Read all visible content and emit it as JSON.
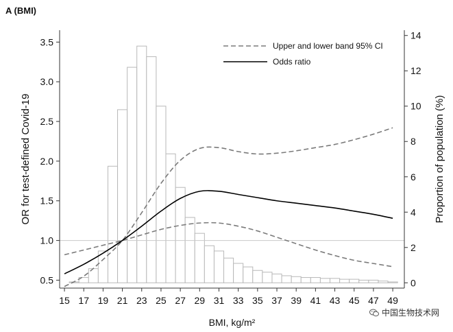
{
  "chart_data": {
    "type": "bar+line",
    "panel_label": "A (BMI)",
    "xlabel": "BMI, kg/m²",
    "ylabel_left": "OR for test-defined Covid-19",
    "ylabel_right": "Proportion of population (%)",
    "xlim": [
      14.5,
      50.2
    ],
    "ylim_left": [
      0.4,
      3.65
    ],
    "ylim_right": [
      -0.3,
      14.3
    ],
    "x_ticks": [
      15,
      17,
      19,
      21,
      23,
      25,
      27,
      29,
      31,
      33,
      35,
      37,
      39,
      41,
      43,
      45,
      47,
      49
    ],
    "y_left_ticks": [
      0.5,
      1.0,
      1.5,
      2.0,
      2.5,
      3.0,
      3.5
    ],
    "y_right_ticks": [
      0,
      2,
      4,
      6,
      8,
      10,
      12,
      14
    ],
    "reference_line_or": 1.0,
    "histogram": {
      "name": "Proportion of population (%)",
      "bin_centers": [
        16,
        17,
        18,
        19,
        20,
        21,
        22,
        23,
        24,
        25,
        26,
        27,
        28,
        29,
        30,
        31,
        32,
        33,
        34,
        35,
        36,
        37,
        38,
        39,
        40,
        41,
        42,
        43,
        44,
        45,
        46,
        47,
        48,
        49
      ],
      "values": [
        0.05,
        0.3,
        0.8,
        1.8,
        6.6,
        9.8,
        12.2,
        13.4,
        12.8,
        10.0,
        7.3,
        5.4,
        3.7,
        2.8,
        2.1,
        1.8,
        1.4,
        1.1,
        0.9,
        0.7,
        0.6,
        0.5,
        0.4,
        0.35,
        0.3,
        0.3,
        0.25,
        0.25,
        0.2,
        0.2,
        0.15,
        0.15,
        0.1,
        0.05
      ]
    },
    "series": [
      {
        "name": "Upper and lower band 95% CI",
        "role": "upper",
        "style": "dashed",
        "x": [
          15,
          17,
          19,
          21,
          23,
          25,
          27,
          29,
          31,
          33,
          35,
          37,
          39,
          41,
          43,
          45,
          47,
          49
        ],
        "values": [
          0.42,
          0.55,
          0.76,
          1.0,
          1.35,
          1.72,
          2.01,
          2.16,
          2.17,
          2.12,
          2.09,
          2.1,
          2.13,
          2.17,
          2.21,
          2.27,
          2.34,
          2.42
        ]
      },
      {
        "name": "Upper and lower band 95% CI",
        "role": "lower",
        "style": "dashed",
        "x": [
          15,
          17,
          19,
          21,
          23,
          25,
          27,
          29,
          31,
          33,
          35,
          37,
          39,
          41,
          43,
          45,
          47,
          49
        ],
        "values": [
          0.82,
          0.88,
          0.94,
          1.0,
          1.07,
          1.14,
          1.19,
          1.22,
          1.22,
          1.18,
          1.12,
          1.04,
          0.96,
          0.88,
          0.81,
          0.75,
          0.71,
          0.67
        ]
      },
      {
        "name": "Odds ratio",
        "role": "estimate",
        "style": "solid",
        "x": [
          15,
          17,
          19,
          21,
          23,
          25,
          27,
          29,
          31,
          33,
          35,
          37,
          39,
          41,
          43,
          45,
          47,
          49
        ],
        "values": [
          0.58,
          0.7,
          0.84,
          1.0,
          1.18,
          1.37,
          1.53,
          1.62,
          1.62,
          1.58,
          1.54,
          1.5,
          1.47,
          1.44,
          1.41,
          1.37,
          1.33,
          1.28
        ]
      }
    ],
    "legend": {
      "placement": "top-right",
      "items": [
        {
          "label": "Upper and lower band 95% CI",
          "style": "dashed"
        },
        {
          "label": "Odds ratio",
          "style": "solid"
        }
      ]
    }
  },
  "colors": {
    "bar_fill": "#ffffff",
    "bar_stroke": "#b8b8b8",
    "ci_line": "#7a7a7a",
    "or_line": "#000000",
    "ref_line": "#c8c8c8",
    "axis": "#333333"
  },
  "watermark": {
    "text": "中国生物技术网",
    "icon": "wechat-icon"
  }
}
